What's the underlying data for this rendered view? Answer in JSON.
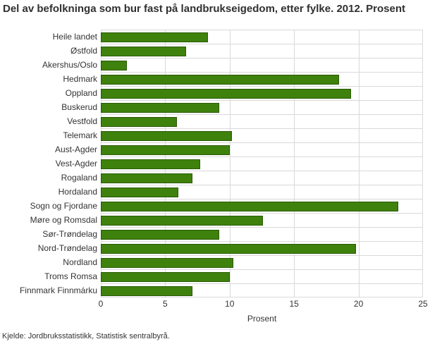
{
  "title": "Del av befolkninga som bur fast på landbrukseigedom, etter fylke. 2012. Prosent",
  "source": "Kjelde: Jordbruksstatistikk, Statistisk sentralbyrå.",
  "colors": {
    "bar": "#3e810c",
    "bar_border": "#2b5a08",
    "grid": "#d9d9d9",
    "text": "#333333"
  },
  "chart_data": {
    "type": "bar",
    "orientation": "horizontal",
    "title": "Del av befolkninga som bur fast på landbrukseigedom, etter fylke. 2012. Prosent",
    "categories": [
      "Heile landet",
      "Østfold",
      "Akershus/Oslo",
      "Hedmark",
      "Oppland",
      "Buskerud",
      "Vestfold",
      "Telemark",
      "Aust-Agder",
      "Vest-Agder",
      "Rogaland",
      "Hordaland",
      "Sogn og Fjordane",
      "Møre og Romsdal",
      "Sør-Trøndelag",
      "Nord-Trøndelag",
      "Nordland",
      "Troms Romsa",
      "Finnmark Finnmárku"
    ],
    "values": [
      8.3,
      6.6,
      2.0,
      18.5,
      19.4,
      9.2,
      5.9,
      10.2,
      10.0,
      7.7,
      7.1,
      6.0,
      23.1,
      12.6,
      9.2,
      19.8,
      10.3,
      10.0,
      7.1
    ],
    "xlabel": "Prosent",
    "ylabel": "",
    "xlim": [
      0,
      25
    ],
    "xticks": [
      0,
      5,
      10,
      15,
      20,
      25
    ],
    "grid": true,
    "legend": "none",
    "source": "Kjelde: Jordbruksstatistikk, Statistisk sentralbyrå."
  }
}
